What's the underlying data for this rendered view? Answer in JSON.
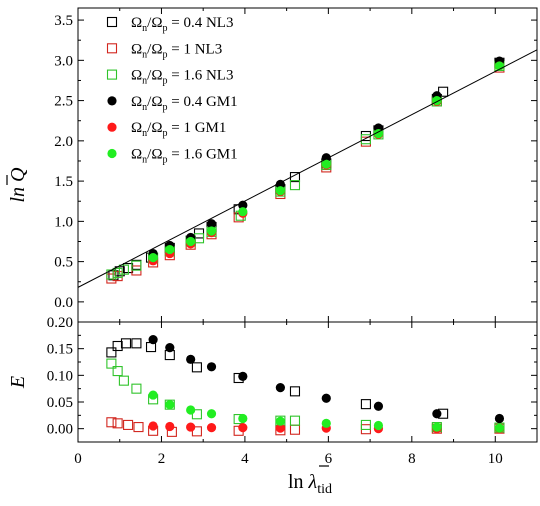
{
  "chart_data": [
    {
      "type": "scatter",
      "panel": "top",
      "ylabel": "ln Q̄",
      "ylim": [
        -0.25,
        3.65
      ],
      "yticks": [
        0.0,
        0.5,
        1.0,
        1.5,
        2.0,
        2.5,
        3.0,
        3.5
      ],
      "ytick_labels": [
        "0.0",
        "0.5",
        "1.0",
        "1.5",
        "2.0",
        "2.5",
        "3.0",
        "3.5"
      ],
      "xlim": [
        0,
        11
      ],
      "legend_placement": "top-left",
      "fit_line": {
        "x": [
          0,
          11
        ],
        "y": [
          0.18,
          3.13
        ]
      },
      "series": [
        {
          "name": "Ωn/Ωp = 0.4 NL3",
          "marker": "open-square",
          "color": "#000000",
          "x": [
            0.85,
            1.0,
            1.2,
            1.4,
            1.75,
            2.2,
            2.7,
            2.9,
            3.2,
            3.85,
            4.85,
            5.2,
            5.95,
            6.9,
            7.2,
            8.6,
            8.75,
            10.1
          ],
          "y": [
            0.33,
            0.38,
            0.42,
            0.46,
            0.55,
            0.67,
            0.76,
            0.85,
            0.93,
            1.15,
            1.4,
            1.55,
            1.72,
            2.06,
            2.13,
            2.52,
            2.61,
            2.97
          ]
        },
        {
          "name": "Ωn/Ωp = 1 NL3",
          "marker": "open-square",
          "color": "#d2261e",
          "x": [
            0.8,
            0.95,
            1.4,
            1.8,
            2.2,
            2.7,
            3.2,
            3.85,
            4.85,
            5.95,
            6.9,
            8.6,
            10.1
          ],
          "y": [
            0.29,
            0.32,
            0.39,
            0.49,
            0.58,
            0.71,
            0.84,
            1.05,
            1.34,
            1.67,
            1.99,
            2.49,
            2.91
          ]
        },
        {
          "name": "Ωn/Ωp = 1.6 NL3",
          "marker": "open-square",
          "color": "#2fc42a",
          "x": [
            0.8,
            0.95,
            1.1,
            1.4,
            1.8,
            2.2,
            2.7,
            2.9,
            3.2,
            3.9,
            4.85,
            5.2,
            5.95,
            6.9,
            7.2,
            8.6,
            10.1
          ],
          "y": [
            0.34,
            0.36,
            0.4,
            0.45,
            0.55,
            0.63,
            0.75,
            0.79,
            0.87,
            1.07,
            1.37,
            1.45,
            1.7,
            2.02,
            2.08,
            2.49,
            2.93
          ]
        },
        {
          "name": "Ωn/Ωp = 0.4 GM1",
          "marker": "filled-circle",
          "color": "#000000",
          "x": [
            1.8,
            2.2,
            2.7,
            3.2,
            3.95,
            4.85,
            5.95,
            7.2,
            8.6,
            10.1
          ],
          "y": [
            0.6,
            0.7,
            0.8,
            0.97,
            1.2,
            1.46,
            1.79,
            2.16,
            2.56,
            2.99
          ]
        },
        {
          "name": "Ωn/Ωp = 1 GM1",
          "marker": "filled-circle",
          "color": "#ff1a1a",
          "x": [
            1.8,
            2.2,
            2.7,
            3.2,
            3.95,
            4.85,
            5.95,
            7.2,
            8.6,
            10.1
          ],
          "y": [
            0.51,
            0.6,
            0.72,
            0.86,
            1.1,
            1.37,
            1.7,
            2.08,
            2.49,
            2.93
          ]
        },
        {
          "name": "Ωn/Ωp = 1.6 GM1",
          "marker": "filled-circle",
          "color": "#22ee22",
          "x": [
            1.8,
            2.2,
            2.7,
            3.2,
            3.95,
            4.85,
            5.95,
            7.2,
            8.6,
            10.1
          ],
          "y": [
            0.55,
            0.65,
            0.75,
            0.88,
            1.12,
            1.38,
            1.71,
            2.09,
            2.5,
            2.93
          ]
        }
      ]
    },
    {
      "type": "scatter",
      "panel": "bottom",
      "ylabel": "E",
      "xlabel": "ln λ̄",
      "xlabel_sub": "tid",
      "ylim": [
        -0.025,
        0.2
      ],
      "yticks": [
        0.0,
        0.05,
        0.1,
        0.15,
        0.2
      ],
      "ytick_labels": [
        "0.00",
        "0.05",
        "0.10",
        "0.15",
        "0.20"
      ],
      "xlim": [
        0,
        11
      ],
      "xticks": [
        0,
        2,
        4,
        6,
        8,
        10
      ],
      "xtick_labels": [
        "0",
        "2",
        "4",
        "6",
        "8",
        "10"
      ],
      "series": [
        {
          "name": "Ωn/Ωp = 0.4 NL3",
          "marker": "open-square",
          "color": "#000000",
          "x": [
            0.8,
            0.95,
            1.15,
            1.4,
            1.75,
            2.2,
            2.85,
            3.85,
            5.2,
            6.9,
            8.75
          ],
          "y": [
            0.143,
            0.155,
            0.16,
            0.16,
            0.153,
            0.138,
            0.115,
            0.095,
            0.07,
            0.046,
            0.028
          ]
        },
        {
          "name": "Ωn/Ωp = 1 NL3",
          "marker": "open-square",
          "color": "#d2261e",
          "x": [
            0.8,
            0.95,
            1.2,
            1.45,
            1.8,
            2.25,
            2.85,
            3.85,
            4.85,
            5.2,
            6.9,
            8.6,
            10.1
          ],
          "y": [
            0.012,
            0.01,
            0.007,
            0.003,
            -0.004,
            -0.006,
            -0.005,
            -0.004,
            -0.003,
            -0.002,
            -0.001,
            0.0,
            0.0
          ]
        },
        {
          "name": "Ωn/Ωp = 1.6 NL3",
          "marker": "open-square",
          "color": "#2fc42a",
          "x": [
            0.8,
            0.95,
            1.1,
            1.4,
            1.8,
            2.2,
            2.85,
            3.85,
            4.85,
            5.2,
            6.9,
            8.6,
            10.1
          ],
          "y": [
            0.122,
            0.108,
            0.09,
            0.075,
            0.055,
            0.045,
            0.027,
            0.018,
            0.015,
            0.015,
            0.007,
            0.003,
            0.002
          ]
        },
        {
          "name": "Ωn/Ωp = 0.4 GM1",
          "marker": "filled-circle",
          "color": "#000000",
          "x": [
            1.8,
            2.2,
            2.7,
            3.2,
            3.95,
            4.85,
            5.95,
            7.2,
            8.6,
            10.1
          ],
          "y": [
            0.167,
            0.152,
            0.13,
            0.116,
            0.098,
            0.077,
            0.057,
            0.042,
            0.028,
            0.019
          ]
        },
        {
          "name": "Ωn/Ωp = 1 GM1",
          "marker": "filled-circle",
          "color": "#ff1a1a",
          "x": [
            1.8,
            2.2,
            2.7,
            3.2,
            3.95,
            4.85,
            5.95,
            7.2,
            8.6,
            10.1
          ],
          "y": [
            0.005,
            0.004,
            0.003,
            0.002,
            0.002,
            0.001,
            0.001,
            0.0,
            0.0,
            0.0
          ]
        },
        {
          "name": "Ωn/Ωp = 1.6 GM1",
          "marker": "filled-circle",
          "color": "#22ee22",
          "x": [
            1.8,
            2.2,
            2.7,
            3.2,
            3.95,
            4.85,
            5.95,
            7.2,
            8.6,
            10.1
          ],
          "y": [
            0.063,
            0.045,
            0.035,
            0.028,
            0.019,
            0.014,
            0.01,
            0.006,
            0.003,
            0.001
          ]
        }
      ]
    }
  ],
  "legend": {
    "entries": [
      {
        "ratio": "0.4",
        "model": "NL3",
        "marker": "open-square",
        "color": "#000000"
      },
      {
        "ratio": "1",
        "model": "NL3",
        "marker": "open-square",
        "color": "#d2261e"
      },
      {
        "ratio": "1.6",
        "model": "NL3",
        "marker": "open-square",
        "color": "#2fc42a"
      },
      {
        "ratio": "0.4",
        "model": "GM1",
        "marker": "filled-circle",
        "color": "#000000"
      },
      {
        "ratio": "1",
        "model": "GM1",
        "marker": "filled-circle",
        "color": "#ff1a1a"
      },
      {
        "ratio": "1.6",
        "model": "GM1",
        "marker": "filled-circle",
        "color": "#22ee22"
      }
    ]
  }
}
